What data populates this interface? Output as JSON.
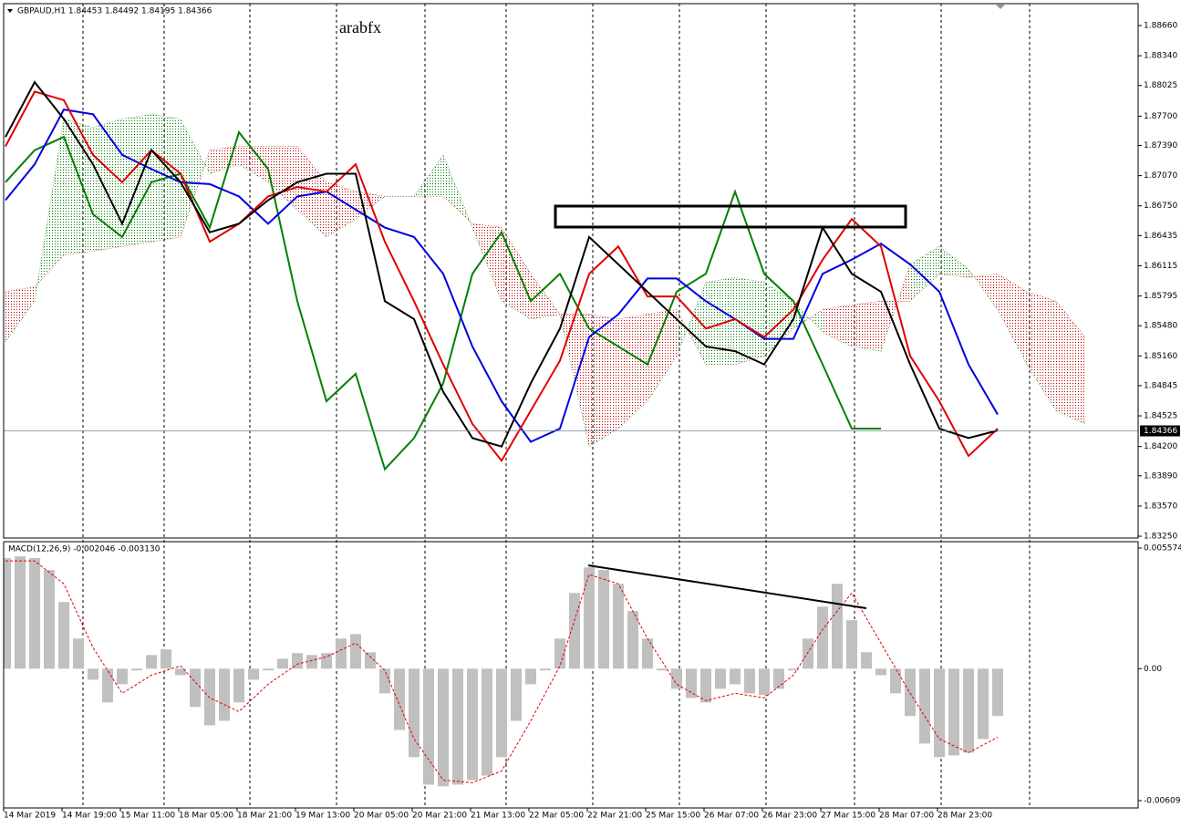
{
  "chart_data": [
    {
      "type": "line",
      "title": "GBPAUD,H1  1.84453 1.84492 1.84195 1.84366",
      "annotation": "arabfx",
      "xlim": [
        0,
        311
      ],
      "ylim": [
        1.83231,
        1.88892
      ],
      "yticks": [
        {
          "value": 1.8866,
          "label": "1.88660"
        },
        {
          "value": 1.8834,
          "label": "1.88340"
        },
        1.88025,
        {
          "value": 1.877,
          "label": "1.87700"
        },
        {
          "value": 1.8739,
          "label": "1.87390"
        },
        {
          "value": 1.8707,
          "label": "1.87070"
        },
        {
          "value": 1.8675,
          "label": "1.86750"
        },
        1.86435,
        1.86115,
        1.85795,
        {
          "value": 1.8548,
          "label": "1.85480"
        },
        {
          "value": 1.8516,
          "label": "1.85160"
        },
        1.84845,
        1.84525,
        {
          "value": 1.842,
          "label": "1.84200"
        },
        {
          "value": 1.8389,
          "label": "1.83890"
        },
        {
          "value": 1.8357,
          "label": "1.83570"
        },
        {
          "value": 1.8325,
          "label": "1.83250"
        }
      ],
      "current_price": 1.84366,
      "current_price_color": "#778899",
      "cloud": {
        "x": [
          0,
          8,
          16,
          24,
          32,
          40,
          48,
          56,
          64,
          72,
          80,
          88,
          96,
          104,
          112,
          120,
          128,
          136,
          144,
          152,
          160,
          168,
          176,
          184,
          192,
          200,
          208,
          216,
          224,
          232,
          240,
          248,
          256,
          264,
          272,
          280,
          288,
          296
        ],
        "span_a": [
          1.8531,
          1.8574,
          1.8767,
          1.8758,
          1.8767,
          1.8772,
          1.8767,
          1.8709,
          1.8719,
          1.87,
          1.8671,
          1.8642,
          1.8661,
          1.8685,
          1.8685,
          1.8729,
          1.8652,
          1.8574,
          1.8555,
          1.856,
          1.842,
          1.8439,
          1.8468,
          1.8516,
          1.8594,
          1.8599,
          1.8594,
          1.8574,
          1.8541,
          1.8526,
          1.8521,
          1.8613,
          1.8632,
          1.8608,
          1.8565,
          1.8507,
          1.8458,
          1.8444
        ],
        "span_b": [
          1.8584,
          1.8589,
          1.8623,
          1.8627,
          1.8632,
          1.8637,
          1.8642,
          1.8734,
          1.8738,
          1.8738,
          1.8738,
          1.87,
          1.869,
          1.8685,
          1.8685,
          1.8685,
          1.8656,
          1.8652,
          1.8603,
          1.856,
          1.856,
          1.8555,
          1.856,
          1.8565,
          1.8507,
          1.8507,
          1.8516,
          1.8545,
          1.8565,
          1.857,
          1.8574,
          1.8574,
          1.8603,
          1.8599,
          1.8603,
          1.8584,
          1.8574,
          1.8536
        ],
        "up_color": "#008000",
        "down_color": "#c00000"
      },
      "series": [
        {
          "type": "line",
          "color": "#008000",
          "x": [
            0,
            8,
            16,
            24,
            32,
            40,
            48,
            56,
            64,
            72,
            80,
            88,
            96,
            104,
            112,
            120,
            128,
            136,
            144,
            152,
            160,
            168,
            176,
            184,
            192,
            200,
            208,
            216,
            224,
            232,
            240
          ],
          "values": [
            1.87,
            1.8734,
            1.8748,
            1.8666,
            1.8642,
            1.87,
            1.8709,
            1.8652,
            1.8753,
            1.8714,
            1.8574,
            1.8468,
            1.8497,
            1.8396,
            1.8429,
            1.8487,
            1.8603,
            1.8647,
            1.8574,
            1.8603,
            1.8545,
            1.8526,
            1.8507,
            1.8584,
            1.8603,
            1.869,
            1.8603,
            1.8574,
            1.8507,
            1.8439,
            1.8439
          ]
        },
        {
          "type": "line",
          "color": "#0000e0",
          "x": [
            0,
            8,
            16,
            24,
            32,
            40,
            48,
            56,
            64,
            72,
            80,
            88,
            96,
            104,
            112,
            120,
            128,
            136,
            144,
            152,
            160,
            168,
            176,
            184,
            192,
            200,
            208,
            216,
            224,
            232,
            240,
            248,
            256,
            264,
            272
          ],
          "values": [
            1.8681,
            1.8719,
            1.8777,
            1.8772,
            1.8729,
            1.8714,
            1.87,
            1.8698,
            1.8685,
            1.8656,
            1.8685,
            1.869,
            1.8671,
            1.8652,
            1.8642,
            1.8603,
            1.8526,
            1.8468,
            1.8425,
            1.8439,
            1.8536,
            1.856,
            1.8598,
            1.8598,
            1.8574,
            1.8555,
            1.8534,
            1.8534,
            1.8603,
            1.8618,
            1.8635,
            1.8613,
            1.8584,
            1.8507,
            1.8454
          ]
        },
        {
          "type": "line",
          "color": "#e00000",
          "x": [
            0,
            8,
            16,
            24,
            32,
            40,
            48,
            56,
            64,
            72,
            80,
            88,
            96,
            104,
            112,
            120,
            128,
            136,
            144,
            152,
            160,
            168,
            176,
            184,
            192,
            200,
            208,
            216,
            224,
            232,
            240,
            248,
            256,
            264,
            272
          ],
          "values": [
            1.8738,
            1.8796,
            1.8787,
            1.8729,
            1.87,
            1.8734,
            1.8709,
            1.8637,
            1.8656,
            1.8685,
            1.8695,
            1.869,
            1.8719,
            1.8637,
            1.8574,
            1.8507,
            1.8444,
            1.8405,
            1.8458,
            1.8511,
            1.8603,
            1.8632,
            1.8579,
            1.8579,
            1.8545,
            1.8555,
            1.8536,
            1.8565,
            1.8618,
            1.8661,
            1.8632,
            1.8516,
            1.8468,
            1.841,
            1.8439
          ]
        },
        {
          "type": "line",
          "color": "#000000",
          "x": [
            0,
            8,
            16,
            24,
            32,
            40,
            48,
            56,
            64,
            72,
            80,
            88,
            96,
            104,
            112,
            120,
            128,
            136,
            144,
            152,
            160,
            168,
            176,
            184,
            192,
            200,
            208,
            216,
            224,
            232,
            240,
            248,
            256,
            264,
            272
          ],
          "values": [
            1.8748,
            1.8806,
            1.8767,
            1.8719,
            1.8656,
            1.8734,
            1.87,
            1.8647,
            1.8656,
            1.8681,
            1.87,
            1.8709,
            1.8709,
            1.8574,
            1.8555,
            1.8478,
            1.8429,
            1.842,
            1.8487,
            1.8545,
            1.8642,
            1.8613,
            1.8584,
            1.8555,
            1.8526,
            1.8521,
            1.8507,
            1.8555,
            1.8652,
            1.8603,
            1.8584,
            1.8507,
            1.8439,
            1.8429,
            1.8437
          ]
        }
      ]
    },
    {
      "type": "bar",
      "title": "MACD(12,26,9) -0.002046 -0.003130",
      "xlim": [
        0,
        311
      ],
      "ylim": [
        -0.006436,
        0.005869
      ],
      "yticks": [
        0.005574,
        {
          "value": 0,
          "label": "0.00"
        },
        -0.006098
      ],
      "xticks": [
        {
          "value": 0,
          "label": "14 Mar 2019"
        },
        {
          "value": 16,
          "label": "14 Mar 19:00"
        },
        {
          "value": 32,
          "label": "15 Mar 11:00"
        },
        {
          "value": 48,
          "label": "18 Mar 05:00"
        },
        {
          "value": 64,
          "label": "18 Mar 21:00"
        },
        {
          "value": 80,
          "label": "19 Mar 13:00"
        },
        {
          "value": 96,
          "label": "20 Mar 05:00"
        },
        {
          "value": 112,
          "label": "20 Mar 21:00"
        },
        {
          "value": 128,
          "label": "21 Mar 13:00"
        },
        {
          "value": 144,
          "label": "22 Mar 05:00"
        },
        {
          "value": 160,
          "label": "22 Mar 21:00"
        },
        {
          "value": 176,
          "label": "25 Mar 15:00"
        },
        {
          "value": 192,
          "label": "26 Mar 07:00"
        },
        {
          "value": 208,
          "label": "26 Mar 23:00"
        },
        {
          "value": 224,
          "label": "27 Mar 15:00"
        },
        {
          "value": 240,
          "label": "28 Mar 07:00"
        },
        {
          "value": 256,
          "label": "28 Mar 23:00"
        }
      ],
      "series": [
        {
          "type": "bar",
          "color": "#c0c0c0",
          "x": [
            0,
            4,
            8,
            12,
            16,
            20,
            24,
            28,
            32,
            36,
            40,
            44,
            48,
            52,
            56,
            60,
            64,
            68,
            72,
            76,
            80,
            84,
            88,
            92,
            96,
            100,
            104,
            108,
            112,
            116,
            120,
            124,
            128,
            132,
            136,
            140,
            144,
            148,
            152,
            156,
            160,
            164,
            168,
            172,
            176,
            180,
            184,
            188,
            192,
            196,
            200,
            204,
            208,
            212,
            216,
            220,
            224,
            228,
            232,
            236,
            240,
            244,
            248,
            252,
            256,
            260,
            264,
            268,
            272
          ],
          "values": [
            0.00511,
            0.00519,
            0.00511,
            0.00456,
            0.00308,
            0.00139,
            -0.00051,
            -0.00156,
            -0.00072,
            -8e-05,
            0.00063,
            0.00089,
            -0.0003,
            -0.00177,
            -0.00262,
            -0.00241,
            -0.00156,
            -0.00051,
            -8e-05,
            0.00046,
            0.00072,
            0.00063,
            0.00072,
            0.00139,
            0.0016,
            0.00076,
            -0.00114,
            -0.00283,
            -0.00409,
            -0.00536,
            -0.00544,
            -0.00536,
            -0.00515,
            -0.00494,
            -0.00409,
            -0.00241,
            -0.00072,
            -8e-05,
            0.00139,
            0.0035,
            0.00468,
            0.00456,
            0.00392,
            0.00266,
            0.00139,
            -8e-05,
            -0.00093,
            -0.00135,
            -0.00156,
            -0.00093,
            -0.00072,
            -0.00114,
            -0.00122,
            -0.00093,
            -8e-05,
            0.00139,
            0.00287,
            0.00392,
            0.00224,
            0.00076,
            -0.0003,
            -0.00114,
            -0.00219,
            -0.00346,
            -0.00409,
            -0.00401,
            -0.00388,
            -0.00325,
            -0.00219
          ]
        },
        {
          "type": "line",
          "color": "#e00000",
          "dashed": true,
          "x": [
            0,
            8,
            16,
            24,
            32,
            40,
            48,
            56,
            64,
            72,
            80,
            88,
            96,
            104,
            112,
            120,
            128,
            136,
            144,
            152,
            160,
            168,
            176,
            184,
            192,
            200,
            208,
            216,
            224,
            232,
            240,
            248,
            256,
            264,
            272
          ],
          "values": [
            0.00498,
            0.00498,
            0.00392,
            0.00097,
            -0.00114,
            -0.0003,
            0.00013,
            -0.00135,
            -0.00198,
            -0.00072,
            0.00021,
            0.00055,
            0.00118,
            -8e-05,
            -0.00325,
            -0.00515,
            -0.00527,
            -0.00473,
            -0.00241,
            0.00013,
            0.00435,
            0.00392,
            0.00139,
            -0.00072,
            -0.00148,
            -0.00114,
            -0.00135,
            -0.0003,
            0.00181,
            0.0035,
            0.00118,
            -0.00114,
            -0.00325,
            -0.00388,
            -0.00317
          ]
        }
      ]
    }
  ]
}
